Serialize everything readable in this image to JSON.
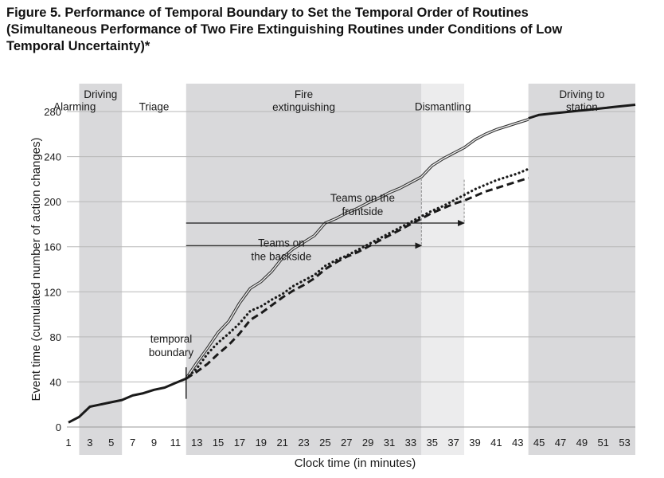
{
  "figure": {
    "title_lines": [
      "Figure 5.  Performance of Temporal Boundary to Set the Temporal Order of Routines",
      "(Simultaneous Performance of Two Fire Extinguishing Routines under Conditions of Low",
      "Temporal Uncertainty)*"
    ]
  },
  "chart_data": {
    "type": "line",
    "xlabel": "Clock time (in minutes)",
    "ylabel": "Event time (cumulated number of action changes)",
    "xlim": [
      1,
      54
    ],
    "ylim": [
      0,
      280
    ],
    "x_ticks": [
      1,
      3,
      5,
      7,
      9,
      11,
      13,
      15,
      17,
      19,
      21,
      23,
      25,
      27,
      29,
      31,
      33,
      35,
      37,
      39,
      41,
      43,
      45,
      47,
      49,
      51,
      53
    ],
    "y_ticks": [
      0,
      40,
      80,
      120,
      160,
      200,
      240,
      280
    ],
    "grid": "horizontal",
    "phases": [
      {
        "label_lines": [
          "Alarming"
        ],
        "x0": 1,
        "x1": 2,
        "shade": "none",
        "label_y": 281
      },
      {
        "label_lines": [
          "Driving"
        ],
        "x0": 2,
        "x1": 6,
        "shade": "dark",
        "label_y": 292
      },
      {
        "label_lines": [
          "Triage"
        ],
        "x0": 6,
        "x1": 12,
        "shade": "none",
        "label_y": 281
      },
      {
        "label_lines": [
          "Fire",
          "extinguishing"
        ],
        "x0": 12,
        "x1": 34,
        "shade": "dark",
        "label_y": 292
      },
      {
        "label_lines": [
          "Dismantling"
        ],
        "x0": 34,
        "x1": 38,
        "shade": "light",
        "label_y": 281
      },
      {
        "label_lines": [
          "Driving to",
          "station"
        ],
        "x0": 44,
        "x1": 54,
        "shade": "dark",
        "label_y": 292
      }
    ],
    "series": [
      {
        "style": "solid-thick",
        "color": "#1a1a1a",
        "x": [
          1,
          2,
          3,
          4,
          5,
          6,
          7,
          8,
          9,
          10,
          11,
          12
        ],
        "y": [
          4,
          9,
          18,
          20,
          22,
          24,
          28,
          30,
          33,
          35,
          39,
          43
        ]
      },
      {
        "style": "double",
        "color": "#333333",
        "x": [
          12,
          13,
          14,
          15,
          16,
          17,
          18,
          19,
          20,
          21,
          22,
          23,
          24,
          25,
          26,
          27,
          28,
          29,
          30,
          31,
          32,
          33,
          34,
          35,
          36,
          37,
          38,
          39,
          40,
          41,
          42,
          43,
          44
        ],
        "y": [
          43,
          57,
          70,
          84,
          94,
          110,
          123,
          129,
          138,
          150,
          158,
          164,
          170,
          181,
          185,
          190,
          194,
          199,
          203,
          208,
          212,
          217,
          222,
          232,
          238,
          243,
          248,
          255,
          260,
          264,
          267,
          270,
          273
        ]
      },
      {
        "style": "dotted",
        "color": "#1a1a1a",
        "x": [
          12,
          13,
          14,
          15,
          16,
          17,
          18,
          19,
          20,
          21,
          22,
          23,
          24,
          25,
          26,
          27,
          28,
          29,
          30,
          31,
          32,
          33,
          34,
          35,
          36,
          37,
          38,
          39,
          40,
          41,
          42,
          43,
          44
        ],
        "y": [
          43,
          52,
          65,
          75,
          83,
          92,
          103,
          107,
          113,
          118,
          125,
          130,
          135,
          143,
          148,
          152,
          157,
          162,
          167,
          172,
          177,
          182,
          187,
          192,
          196,
          201,
          206,
          211,
          215,
          219,
          222,
          225,
          229
        ]
      },
      {
        "style": "dashed",
        "color": "#1a1a1a",
        "x": [
          12,
          13,
          14,
          15,
          16,
          17,
          18,
          19,
          20,
          21,
          22,
          23,
          24,
          25,
          26,
          27,
          28,
          29,
          30,
          31,
          32,
          33,
          34,
          35,
          36,
          37,
          38,
          39,
          40,
          41,
          42,
          43,
          44
        ],
        "y": [
          43,
          49,
          56,
          65,
          73,
          83,
          95,
          101,
          108,
          115,
          121,
          126,
          132,
          140,
          146,
          151,
          155,
          160,
          165,
          170,
          175,
          180,
          185,
          190,
          194,
          198,
          201,
          205,
          209,
          212,
          215,
          218,
          221
        ]
      },
      {
        "style": "solid-thick",
        "color": "#1a1a1a",
        "x": [
          44,
          45,
          46,
          47,
          48,
          49,
          50,
          51,
          52,
          53,
          54
        ],
        "y": [
          274,
          277,
          278,
          279,
          280,
          281,
          282,
          283,
          284,
          285,
          286
        ]
      }
    ],
    "annotations": [
      {
        "text_lines": [
          "temporal",
          "boundary"
        ],
        "x": 10.6,
        "y": 75,
        "anchor": "middle"
      },
      {
        "text_lines": [
          "Teams on the",
          "frontside"
        ],
        "x": 28.5,
        "y": 200,
        "anchor": "middle"
      },
      {
        "text_lines": [
          "Teams on",
          "the backside"
        ],
        "x": 20.9,
        "y": 160,
        "anchor": "middle"
      }
    ],
    "arrows": [
      {
        "x0": 12,
        "x1": 38,
        "y": 181
      },
      {
        "x0": 12,
        "x1": 34,
        "y": 161
      }
    ],
    "boundary_marker": {
      "x": 12,
      "y0": 25,
      "y1": 53
    },
    "guide_lines": [
      {
        "x": 34,
        "y0": 162,
        "y1": 220
      },
      {
        "x": 38,
        "y0": 182,
        "y1": 220
      }
    ]
  }
}
